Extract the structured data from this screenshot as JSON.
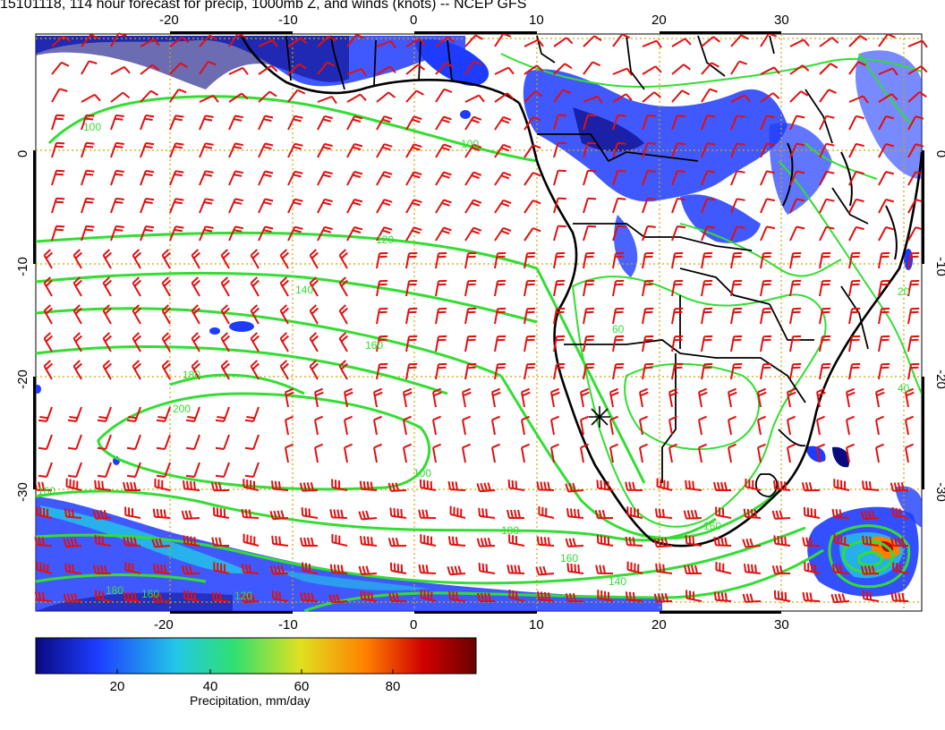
{
  "title": "15101118, 114 hour forecast for precip, 1000mb Z, and winds (knots) -- NCEP GFS",
  "lon_ticks": [
    "-20",
    "-10",
    "0",
    "10",
    "20",
    "30"
  ],
  "lat_ticks": [
    "0",
    "-10",
    "-20",
    "-30"
  ],
  "contour_labels": [
    "100",
    "100",
    "120",
    "140",
    "160",
    "180",
    "200",
    "160",
    "180",
    "100",
    "160",
    "140",
    "120",
    "160",
    "180",
    "160",
    "60",
    "40",
    "20"
  ],
  "colorbar": {
    "label": "Precipitation, mm/day",
    "ticks": [
      "20",
      "40",
      "60",
      "80"
    ],
    "colors": [
      "#0a0a80",
      "#1e3cff",
      "#22c8e6",
      "#30e070",
      "#e0e020",
      "#ff8000",
      "#d00000",
      "#6a0000"
    ]
  },
  "colors": {
    "barbs": "#e01010",
    "contours": "#33dd33",
    "grid": "#d4a400",
    "coast": "#000000"
  }
}
